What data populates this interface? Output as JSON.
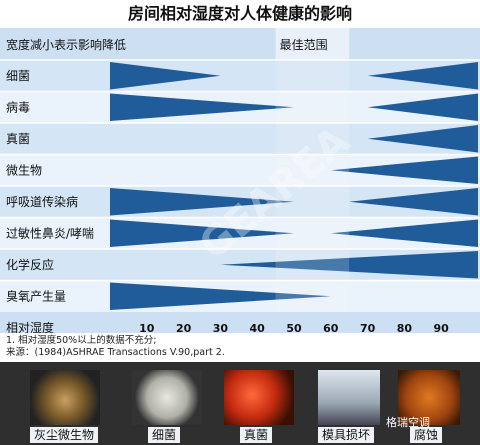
{
  "title": "房间相对湿度对人体健康的影响",
  "chart_data": {
    "type": "bar",
    "xlabel": "相对湿度",
    "x_ticks": [
      10,
      20,
      30,
      40,
      50,
      60,
      70,
      80,
      90
    ],
    "xlim": [
      0,
      100
    ],
    "header_left": "宽度减小表示影响降低",
    "header_optimal": "最佳范围",
    "optimal_range": [
      45,
      65
    ],
    "rows": [
      {
        "label": "细菌",
        "left_end": 30,
        "right_start": 70
      },
      {
        "label": "病毒",
        "left_end": 50,
        "right_start": 70
      },
      {
        "label": "真菌",
        "right_start": 70
      },
      {
        "label": "微生物",
        "right_start": 60
      },
      {
        "label": "呼吸道传染病",
        "left_end": 50,
        "right_start": 65
      },
      {
        "label": "过敏性鼻炎/哮喘",
        "left_end": 50,
        "right_start": 60
      },
      {
        "label": "化学反应",
        "right_start": 30
      },
      {
        "label": "臭氧产生量",
        "left_end": 60
      }
    ]
  },
  "notes": {
    "line1": "1. 相对湿度50%以上的数据不充分;",
    "line2": "来源：(1984)ASHRAE  Transactions V.90,part 2."
  },
  "images": [
    {
      "label": "灰尘微生物"
    },
    {
      "label": "细菌"
    },
    {
      "label": "真菌"
    },
    {
      "label": "模具损坏"
    },
    {
      "label": "腐蚀"
    }
  ],
  "watermark": "GEAREA",
  "wechat": "格瑞空调",
  "colors": {
    "band_light": "#cde0f3",
    "band_alt": "#e6f0fa",
    "wedge": "#1f5c99",
    "optimal": "#f2f6fb"
  }
}
